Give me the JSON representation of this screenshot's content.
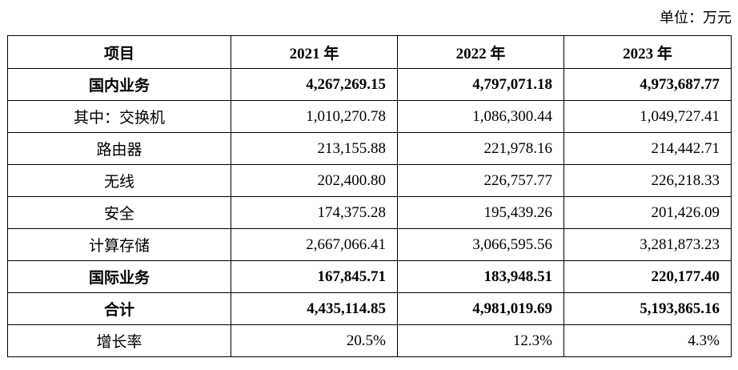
{
  "unit_label": "单位：万元",
  "table": {
    "headers": [
      "项目",
      "2021 年",
      "2022 年",
      "2023 年"
    ],
    "rows": [
      {
        "label": "国内业务",
        "v2021": "4,267,269.15",
        "v2022": "4,797,071.18",
        "v2023": "4,973,687.77",
        "bold": true
      },
      {
        "label": "其中：交换机",
        "v2021": "1,010,270.78",
        "v2022": "1,086,300.44",
        "v2023": "1,049,727.41",
        "bold": false
      },
      {
        "label": "路由器",
        "v2021": "213,155.88",
        "v2022": "221,978.16",
        "v2023": "214,442.71",
        "bold": false
      },
      {
        "label": "无线",
        "v2021": "202,400.80",
        "v2022": "226,757.77",
        "v2023": "226,218.33",
        "bold": false
      },
      {
        "label": "安全",
        "v2021": "174,375.28",
        "v2022": "195,439.26",
        "v2023": "201,426.09",
        "bold": false
      },
      {
        "label": "计算存储",
        "v2021": "2,667,066.41",
        "v2022": "3,066,595.56",
        "v2023": "3,281,873.23",
        "bold": false
      },
      {
        "label": "国际业务",
        "v2021": "167,845.71",
        "v2022": "183,948.51",
        "v2023": "220,177.40",
        "bold": true
      },
      {
        "label": "合计",
        "v2021": "4,435,114.85",
        "v2022": "4,981,019.69",
        "v2023": "5,193,865.16",
        "bold": true
      },
      {
        "label": "增长率",
        "v2021": "20.5%",
        "v2022": "12.3%",
        "v2023": "4.3%",
        "bold": false
      }
    ]
  }
}
